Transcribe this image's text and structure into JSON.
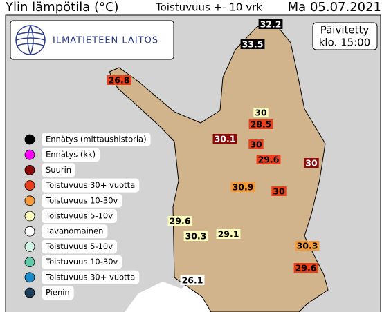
{
  "header": {
    "title": "Ylin lämpötila (°C)",
    "subtitle": "Toistuvuus +- 10 vrk",
    "date": "Ma 05.07.2021"
  },
  "logo": {
    "text": "ILMATIETEEN LAITOS"
  },
  "updated": {
    "line1": "Päivitetty",
    "line2": "klo. 15:00"
  },
  "legend": [
    {
      "label": "Ennätys (mittaushistoria)",
      "color": "#000000"
    },
    {
      "label": "Ennätys (kk)",
      "color": "#ff00ff"
    },
    {
      "label": "Suurin",
      "color": "#8b0a0a"
    },
    {
      "label": "Toistuvuus 30+ vuotta",
      "color": "#e8401c"
    },
    {
      "label": "Toistuvuus 10-30v",
      "color": "#f59a3a"
    },
    {
      "label": "Toistuvuus 5-10v",
      "color": "#ffffc0"
    },
    {
      "label": "Tavanomainen",
      "color": "#ffffff"
    },
    {
      "label": "Toistuvuus 5-10v",
      "color": "#d0f5e6"
    },
    {
      "label": "Toistuvuus 10-30v",
      "color": "#5fc9a8"
    },
    {
      "label": "Toistuvuus 30+ vuotta",
      "color": "#1a8ccc"
    },
    {
      "label": "Pienin",
      "color": "#1c3d5a"
    }
  ],
  "stations": [
    {
      "value": "32.2",
      "color": "#000000"
    },
    {
      "value": "33.5",
      "color": "#000000"
    },
    {
      "value": "26.8",
      "color": "#e8401c"
    },
    {
      "value": "30",
      "color": "#ffffc0"
    },
    {
      "value": "28.5",
      "color": "#e8401c"
    },
    {
      "value": "30.1",
      "color": "#8b0a0a"
    },
    {
      "value": "30",
      "color": "#e8401c"
    },
    {
      "value": "29.6",
      "color": "#e8401c"
    },
    {
      "value": "30",
      "color": "#8b0a0a"
    },
    {
      "value": "30.9",
      "color": "#f59a3a"
    },
    {
      "value": "30",
      "color": "#e8401c"
    },
    {
      "value": "29.6",
      "color": "#ffffc0"
    },
    {
      "value": "30.3",
      "color": "#ffffc0"
    },
    {
      "value": "29.1",
      "color": "#ffffc0"
    },
    {
      "value": "30.3",
      "color": "#f59a3a"
    },
    {
      "value": "29.6",
      "color": "#e8401c"
    },
    {
      "value": "26.1",
      "color": "#ffffff"
    }
  ]
}
